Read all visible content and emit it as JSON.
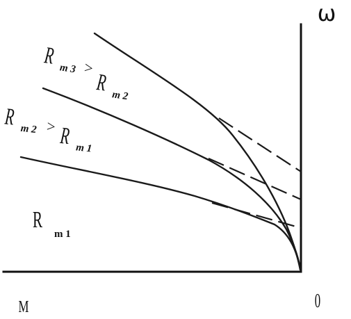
{
  "axes": {
    "y_label": "ω",
    "x_label": "M",
    "origin_label": "0"
  },
  "curve_labels": {
    "r3_main": "R",
    "r3_sub": "m 3",
    "gt_sign_1": ">",
    "r2_main_a": "R",
    "r2_sub_a": "m 2",
    "r2_main_b": "R",
    "r2_sub_b": "m 2",
    "gt_sign_2": ">",
    "r1_main_a": "R",
    "r1_sub_a": "m 1",
    "r1_main_b": "R",
    "r1_sub_b": "m 1"
  },
  "colors": {
    "ink": "#1a1a1a",
    "background": "#ffffff"
  }
}
